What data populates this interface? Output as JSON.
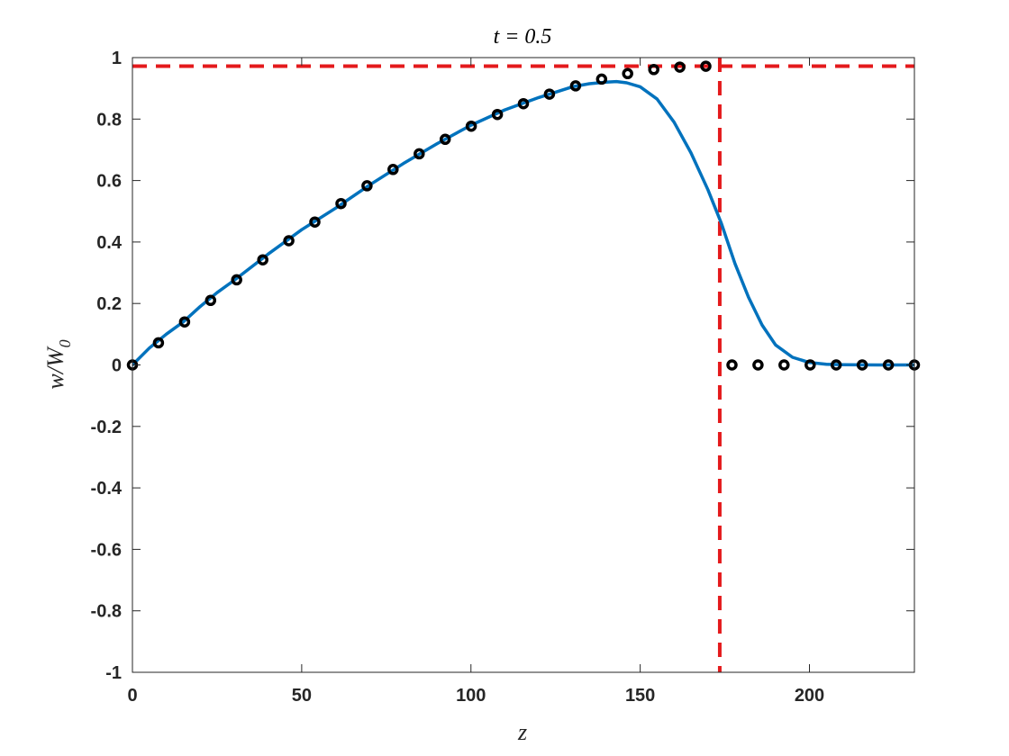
{
  "chart_data": {
    "type": "line",
    "title": "t = 0.5",
    "xlabel": "z",
    "ylabel": "w/W",
    "ylabel_subscript": "0",
    "xlim": [
      0,
      231
    ],
    "ylim": [
      -1,
      1
    ],
    "x_ticks": [
      0,
      50,
      100,
      150,
      200
    ],
    "x_tick_labels": [
      "0",
      "50",
      "100",
      "150",
      "200"
    ],
    "y_ticks": [
      -1,
      -0.8,
      -0.6,
      -0.4,
      -0.2,
      0,
      0.2,
      0.4,
      0.6,
      0.8,
      1
    ],
    "y_tick_labels": [
      "-1",
      "-0.8",
      "-0.6",
      "-0.4",
      "-0.2",
      "0",
      "0.2",
      "0.4",
      "0.6",
      "0.8",
      "1"
    ],
    "grid": false,
    "series": [
      {
        "style": "solid line",
        "color": "#0072BD",
        "x": [
          0,
          5,
          10,
          15,
          20,
          25,
          30,
          40,
          50,
          60,
          70,
          80,
          90,
          100,
          110,
          120,
          130,
          135,
          140,
          143,
          146,
          150,
          155,
          160,
          165,
          170,
          174,
          178,
          182,
          186,
          190,
          195,
          200,
          205,
          210,
          220,
          231
        ],
        "y": [
          0,
          0.055,
          0.1,
          0.14,
          0.19,
          0.235,
          0.275,
          0.36,
          0.44,
          0.51,
          0.585,
          0.655,
          0.72,
          0.78,
          0.83,
          0.87,
          0.905,
          0.915,
          0.92,
          0.922,
          0.918,
          0.905,
          0.865,
          0.79,
          0.69,
          0.57,
          0.46,
          0.33,
          0.22,
          0.13,
          0.065,
          0.025,
          0.008,
          0.002,
          0.0005,
          0,
          0
        ]
      },
      {
        "style": "circle markers",
        "color": "#000000",
        "x": [
          0,
          7.7,
          15.4,
          23.1,
          30.8,
          38.5,
          46.2,
          53.9,
          61.6,
          69.3,
          77,
          84.7,
          92.4,
          100.1,
          107.8,
          115.5,
          123.2,
          130.9,
          138.6,
          146.3,
          154,
          161.7,
          169.4,
          177.1,
          184.8,
          192.5,
          200.2,
          207.9,
          215.6,
          223.3,
          231
        ],
        "y": [
          0,
          0.072,
          0.14,
          0.21,
          0.277,
          0.342,
          0.404,
          0.465,
          0.525,
          0.583,
          0.636,
          0.687,
          0.734,
          0.777,
          0.815,
          0.85,
          0.881,
          0.908,
          0.93,
          0.948,
          0.961,
          0.969,
          0.972,
          0,
          0,
          0,
          0,
          0,
          0,
          0,
          0
        ]
      }
    ],
    "reference_lines": [
      {
        "orientation": "horizontal",
        "value": 0.972,
        "color": "#E41A1C",
        "style": "dashed"
      },
      {
        "orientation": "vertical",
        "value": 173.5,
        "color": "#E41A1C",
        "style": "dashed"
      }
    ]
  }
}
